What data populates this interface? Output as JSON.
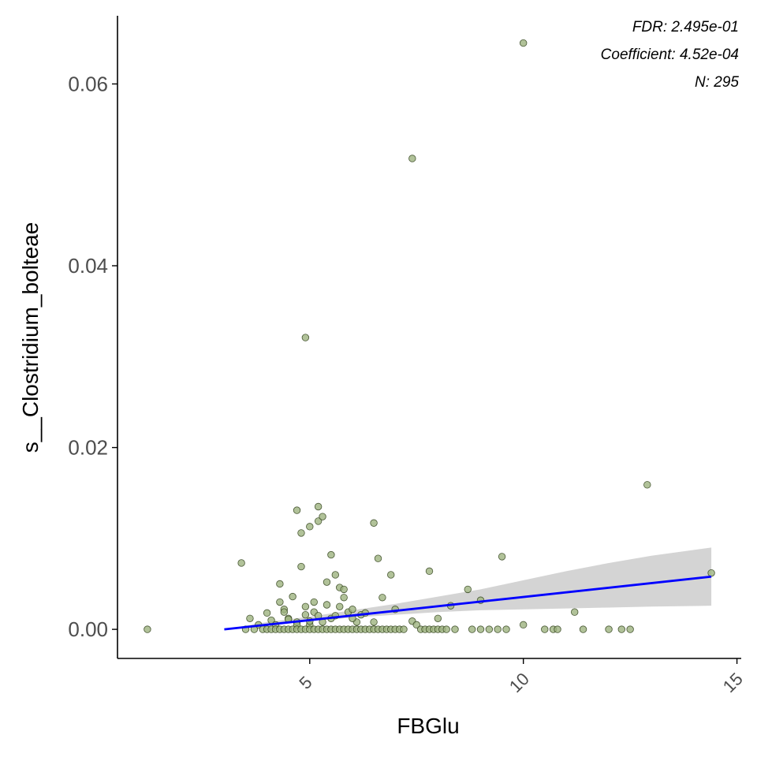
{
  "chart_data": {
    "type": "scatter",
    "title": "",
    "xlabel": "FBGlu",
    "ylabel": "s__Clostridium_bolteae",
    "xlim": [
      0.5,
      15.1
    ],
    "ylim": [
      -0.0032,
      0.0675
    ],
    "x_ticks": [
      5,
      10,
      15
    ],
    "x_tick_labels": [
      "5",
      "10",
      "15"
    ],
    "y_ticks": [
      0,
      0.02,
      0.04,
      0.06
    ],
    "y_tick_labels": [
      "0.00",
      "0.02",
      "0.04",
      "0.06"
    ],
    "grid": false,
    "point_color": "#9db37f",
    "point_edge_color": "#2f3f1a",
    "fit_line_color": "#0000ff",
    "ci_band_color": "#cccccc",
    "annotations": {
      "fdr": "FDR: 2.495e-01",
      "coefficient": "Coefficient: 4.52e-04",
      "n": "N: 295"
    },
    "fit_line": {
      "x": [
        3.0,
        14.4
      ],
      "y": [
        0.0,
        0.0058
      ]
    },
    "ci_band": {
      "x": [
        3.0,
        4.0,
        5.0,
        6.0,
        7.0,
        8.0,
        9.0,
        10.0,
        11.0,
        12.0,
        13.0,
        14.4
      ],
      "lower": [
        0.0,
        0.0005,
        0.0009,
        0.0013,
        0.0016,
        0.0019,
        0.0021,
        0.0022,
        0.0023,
        0.0024,
        0.0025,
        0.0026
      ],
      "upper": [
        0.0,
        0.0008,
        0.0014,
        0.0021,
        0.0028,
        0.0036,
        0.0044,
        0.0054,
        0.0064,
        0.0073,
        0.0081,
        0.009
      ]
    },
    "points": {
      "x": [
        1.2,
        3.4,
        3.6,
        3.8,
        3.9,
        4.0,
        4.1,
        4.2,
        4.3,
        4.3,
        4.4,
        4.5,
        4.6,
        4.7,
        4.7,
        4.8,
        4.8,
        4.9,
        4.9,
        5.0,
        5.0,
        5.1,
        5.1,
        5.2,
        5.2,
        5.3,
        5.3,
        5.4,
        5.4,
        5.5,
        5.5,
        5.6,
        5.6,
        5.7,
        5.7,
        5.8,
        5.9,
        6.0,
        6.1,
        6.2,
        6.3,
        6.5,
        6.6,
        6.7,
        6.9,
        7.0,
        7.4,
        7.8,
        8.0,
        8.3,
        8.7,
        9.0,
        9.5,
        10.0,
        10.7,
        11.2,
        12.9,
        14.4,
        4.9,
        7.4,
        10.0,
        4.7,
        4.5,
        4.4,
        5.0,
        5.2,
        5.8,
        6.0,
        6.5,
        7.5,
        3.5,
        3.7,
        4.0,
        4.1,
        4.2,
        4.3,
        4.4,
        4.5,
        4.6,
        4.7,
        4.8,
        4.9,
        5.0,
        5.1,
        5.2,
        5.3,
        5.4,
        5.5,
        5.6,
        5.7,
        5.8,
        5.9,
        6.0,
        6.1,
        6.2,
        6.3,
        6.4,
        6.5,
        6.6,
        6.7,
        6.8,
        6.9,
        7.0,
        7.1,
        7.2,
        7.6,
        7.7,
        7.8,
        7.9,
        8.0,
        8.1,
        8.2,
        8.4,
        8.8,
        9.0,
        9.2,
        9.4,
        9.6,
        10.5,
        10.8,
        11.4,
        12.0,
        12.3,
        12.5
      ],
      "y": [
        0.0,
        0.0073,
        0.0012,
        0.0005,
        0.0,
        0.0018,
        0.001,
        0.0005,
        0.005,
        0.003,
        0.0022,
        0.0012,
        0.0036,
        0.0131,
        0.0008,
        0.0106,
        0.0069,
        0.0025,
        0.0321,
        0.0113,
        0.0005,
        0.003,
        0.0019,
        0.0135,
        0.0119,
        0.0124,
        0.0008,
        0.0052,
        0.0027,
        0.0082,
        0.0012,
        0.006,
        0.0015,
        0.0046,
        0.0025,
        0.0044,
        0.0019,
        0.0022,
        0.0008,
        0.0016,
        0.0018,
        0.0117,
        0.0078,
        0.0035,
        0.006,
        0.0022,
        0.0518,
        0.0064,
        0.0012,
        0.0026,
        0.0044,
        0.0032,
        0.008,
        0.0645,
        0.0,
        0.0019,
        0.0159,
        0.0062,
        0.0016,
        0.0009,
        0.0005,
        0.0005,
        0.0011,
        0.0019,
        0.0009,
        0.0015,
        0.0035,
        0.0012,
        0.0008,
        0.0005,
        0.0,
        0.0,
        0.0,
        0.0,
        0.0,
        0.0,
        0.0,
        0.0,
        0.0,
        0.0,
        0.0,
        0.0,
        0.0,
        0.0,
        0.0,
        0.0,
        0.0,
        0.0,
        0.0,
        0.0,
        0.0,
        0.0,
        0.0,
        0.0,
        0.0,
        0.0,
        0.0,
        0.0,
        0.0,
        0.0,
        0.0,
        0.0,
        0.0,
        0.0,
        0.0,
        0.0,
        0.0,
        0.0,
        0.0,
        0.0,
        0.0,
        0.0,
        0.0,
        0.0,
        0.0,
        0.0,
        0.0,
        0.0,
        0.0,
        0.0,
        0.0,
        0.0,
        0.0,
        0.0
      ]
    }
  }
}
